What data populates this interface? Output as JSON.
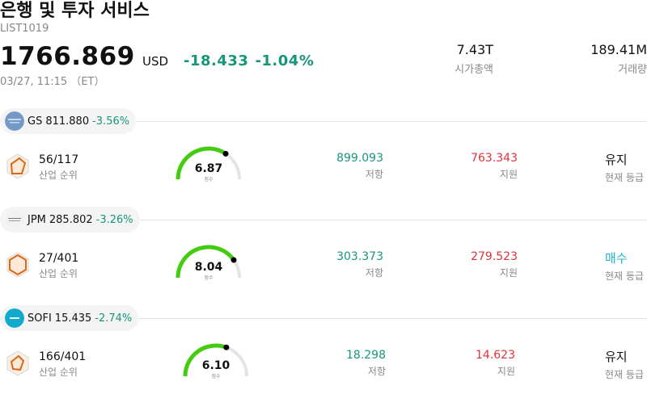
{
  "header": {
    "title": "은행 및 투자 서비스",
    "code": "LIST1019",
    "price": "1766.869",
    "currency": "USD",
    "change": "-18.433",
    "change_pct": "-1.04%",
    "timestamp": "03/27, 11:15 （ET）",
    "market_cap": {
      "value": "7.43T",
      "label": "시가총액"
    },
    "volume": {
      "value": "189.41M",
      "label": "거래량"
    }
  },
  "colors": {
    "up_green": "#17967c",
    "down_red": "#e0323c",
    "buy_teal": "#25b4c8",
    "gauge_green": "#44cc11"
  },
  "labels": {
    "rank_label": "산업 순위",
    "resistance_label": "저항",
    "support_label": "지원",
    "rating_label": "현재 등급",
    "score_label": "점수"
  },
  "stocks": [
    {
      "symbol": "GS",
      "price": "811.880",
      "change_pct": "-3.56%",
      "logo": "goldman-sachs-logo",
      "rank": "56/117",
      "score": "6.87",
      "score_value": 6.87,
      "resistance": "899.093",
      "support": "763.343",
      "rating": "유지",
      "rating_color": "#111111"
    },
    {
      "symbol": "JPM",
      "price": "285.802",
      "change_pct": "-3.26%",
      "logo": "jpmorgan-logo",
      "rank": "27/401",
      "score": "8.04",
      "score_value": 8.04,
      "resistance": "303.373",
      "support": "279.523",
      "rating": "매수",
      "rating_color": "#25b4c8"
    },
    {
      "symbol": "SOFI",
      "price": "15.435",
      "change_pct": "-2.74%",
      "logo": "sofi-logo",
      "rank": "166/401",
      "score": "6.10",
      "score_value": 6.1,
      "resistance": "18.298",
      "support": "14.623",
      "rating": "유지",
      "rating_color": "#111111"
    }
  ]
}
